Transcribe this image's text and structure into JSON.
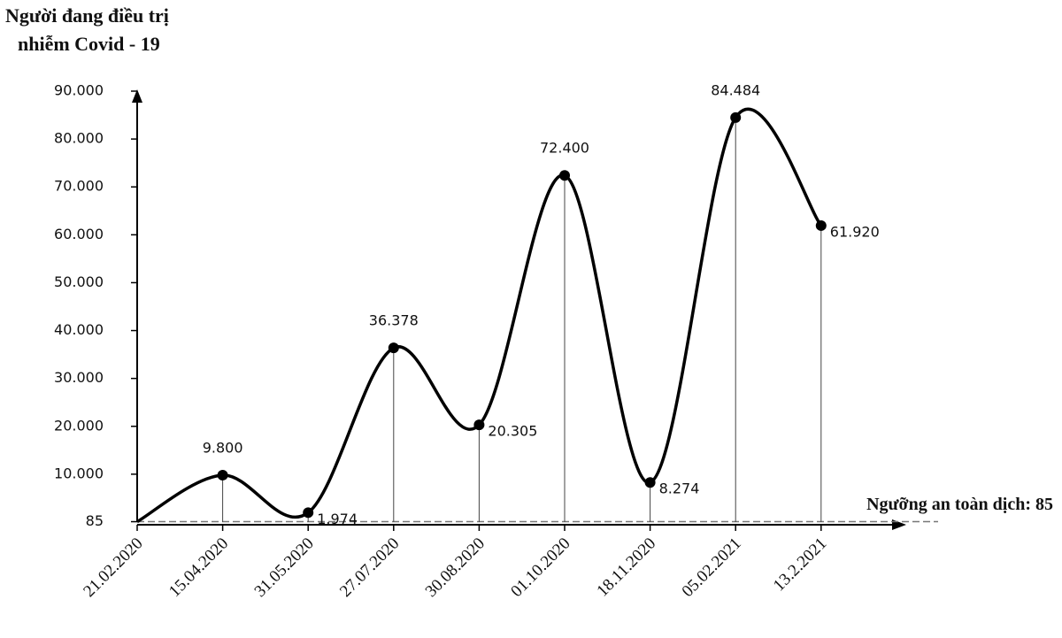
{
  "chart_data": {
    "type": "line",
    "y_axis_label": [
      "Người đang điều trị",
      "nhiễm Covid - 19"
    ],
    "categories": [
      "21.02.2020",
      "15.04.2020",
      "31.05.2020",
      "27.07.2020",
      "30.08.2020",
      "01.10.2020",
      "18.11.2020",
      "05.02.2021",
      "13.2.2021"
    ],
    "values": [
      85,
      9800,
      1974,
      36378,
      20305,
      72400,
      8274,
      84484,
      61920
    ],
    "value_labels": [
      null,
      "9.800",
      "1.974",
      "36.378",
      "20.305",
      "72.400",
      "8.274",
      "84.484",
      "61.920"
    ],
    "color": "#000000",
    "ylim": [
      0,
      90000
    ],
    "yticks": [
      85,
      {
        "value": 10000,
        "label": "10.000"
      },
      {
        "value": 20000,
        "label": "20.000"
      },
      {
        "value": 30000,
        "label": "30.000"
      },
      {
        "value": 40000,
        "label": "40.000"
      },
      {
        "value": 50000,
        "label": "50.000"
      },
      {
        "value": 60000,
        "label": "60.000"
      },
      {
        "value": 70000,
        "label": "70.000"
      },
      {
        "value": 80000,
        "label": "80.000"
      },
      {
        "value": 90000,
        "label": "90.000"
      }
    ],
    "threshold": {
      "label": "Ngưỡng an toàn dịch: 85",
      "value": 85
    }
  }
}
